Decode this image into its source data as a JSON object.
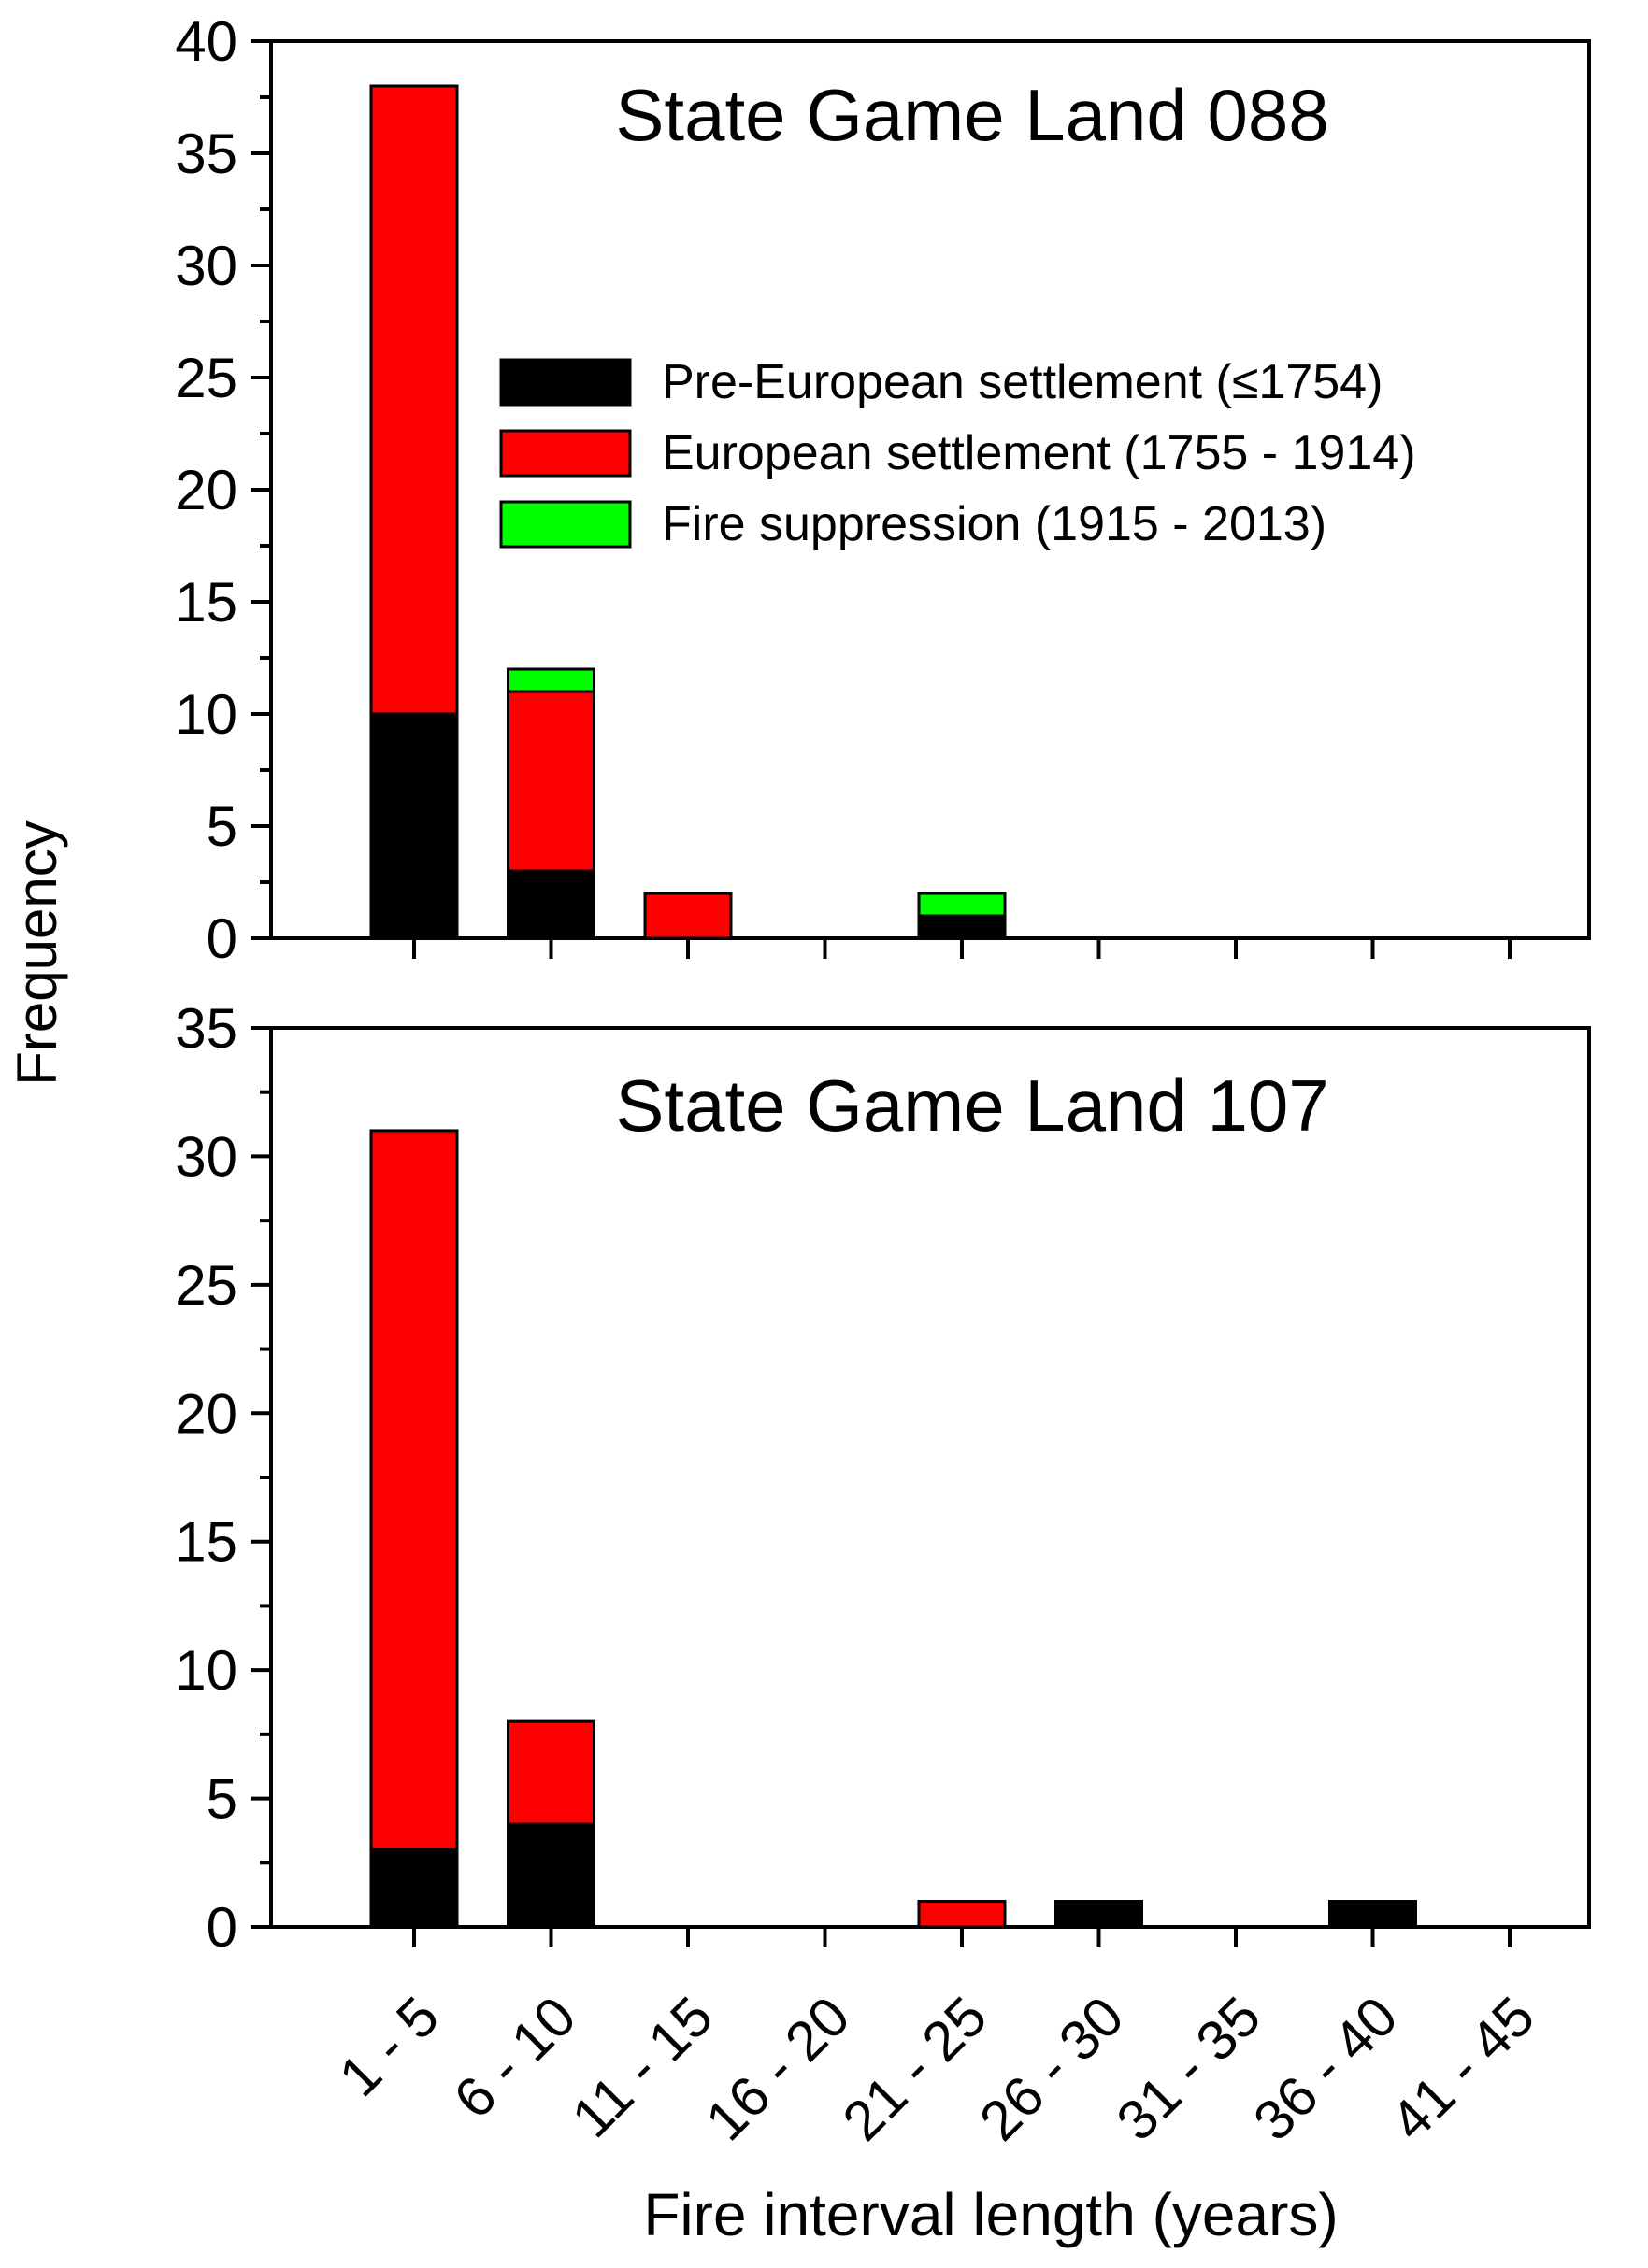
{
  "chart_data": [
    {
      "type": "bar",
      "stacked": true,
      "title": "State Game Land 088",
      "xlabel": "",
      "ylabel": "",
      "ylim": [
        0,
        40
      ],
      "yticks": [
        0,
        5,
        10,
        15,
        20,
        25,
        30,
        35,
        40
      ],
      "categories": [
        "1 - 5",
        "6 - 10",
        "11 - 15",
        "16 - 20",
        "21 - 25",
        "26 - 30",
        "31 - 35",
        "36 - 40",
        "41 - 45"
      ],
      "series": [
        {
          "name": "Pre-European settlement (≤1754)",
          "color": "#000000",
          "values": [
            10,
            3,
            0,
            0,
            1,
            0,
            0,
            0,
            0
          ]
        },
        {
          "name": "European settlement (1755 - 1914)",
          "color": "#ff0000",
          "values": [
            28,
            8,
            2,
            0,
            0,
            0,
            0,
            0,
            0
          ]
        },
        {
          "name": "Fire suppression (1915 - 2013)",
          "color": "#00ff00",
          "values": [
            0,
            1,
            0,
            0,
            1,
            0,
            0,
            0,
            0
          ]
        }
      ],
      "legend": "inside-top-right",
      "grid": false
    },
    {
      "type": "bar",
      "stacked": true,
      "title": "State Game Land 107",
      "xlabel": "",
      "ylabel": "",
      "ylim": [
        0,
        35
      ],
      "yticks": [
        0,
        5,
        10,
        15,
        20,
        25,
        30,
        35
      ],
      "categories": [
        "1 - 5",
        "6 - 10",
        "11 - 15",
        "16 - 20",
        "21 - 25",
        "26 - 30",
        "31 - 35",
        "36 - 40",
        "41 - 45"
      ],
      "series": [
        {
          "name": "Pre-European settlement (≤1754)",
          "color": "#000000",
          "values": [
            3,
            4,
            0,
            0,
            0,
            1,
            0,
            1,
            0
          ]
        },
        {
          "name": "European settlement (1755 - 1914)",
          "color": "#ff0000",
          "values": [
            28,
            4,
            0,
            0,
            1,
            0,
            0,
            0,
            0
          ]
        },
        {
          "name": "Fire suppression (1915 - 2013)",
          "color": "#00ff00",
          "values": [
            0,
            0,
            0,
            0,
            0,
            0,
            0,
            0,
            0
          ]
        }
      ],
      "grid": false
    }
  ],
  "shared_labels": {
    "ylabel": "Frequency",
    "xlabel": "Fire interval length (years)"
  }
}
